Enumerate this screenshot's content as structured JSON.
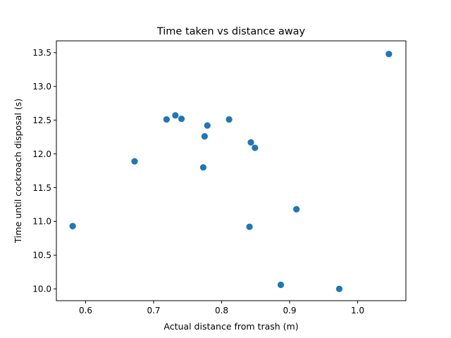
{
  "chart_data": {
    "type": "scatter",
    "title": "Time taken vs distance away",
    "xlabel": "Actual distance from trash (m)",
    "ylabel": "Time until cockroach disposal (s)",
    "xlim": [
      0.557,
      1.071
    ],
    "ylim": [
      9.825,
      13.675
    ],
    "xticks": [
      0.6,
      0.7,
      0.8,
      0.9,
      1.0
    ],
    "xtick_labels": [
      "0.6",
      "0.7",
      "0.8",
      "0.9",
      "1.0"
    ],
    "yticks": [
      10.0,
      10.5,
      11.0,
      11.5,
      12.0,
      12.5,
      13.0,
      13.5
    ],
    "ytick_labels": [
      "10.0",
      "10.5",
      "11.0",
      "11.5",
      "12.0",
      "12.5",
      "13.0",
      "13.5"
    ],
    "grid": false,
    "marker_color": "#1f77b4",
    "points": [
      {
        "x": 0.581,
        "y": 10.93
      },
      {
        "x": 0.672,
        "y": 11.89
      },
      {
        "x": 0.719,
        "y": 12.51
      },
      {
        "x": 0.732,
        "y": 12.57
      },
      {
        "x": 0.741,
        "y": 12.52
      },
      {
        "x": 0.773,
        "y": 11.8
      },
      {
        "x": 0.775,
        "y": 12.26
      },
      {
        "x": 0.779,
        "y": 12.42
      },
      {
        "x": 0.811,
        "y": 12.51
      },
      {
        "x": 0.841,
        "y": 10.92
      },
      {
        "x": 0.843,
        "y": 12.17
      },
      {
        "x": 0.849,
        "y": 12.09
      },
      {
        "x": 0.887,
        "y": 10.06
      },
      {
        "x": 0.91,
        "y": 11.18
      },
      {
        "x": 0.973,
        "y": 10.0
      },
      {
        "x": 1.046,
        "y": 13.48
      }
    ]
  }
}
